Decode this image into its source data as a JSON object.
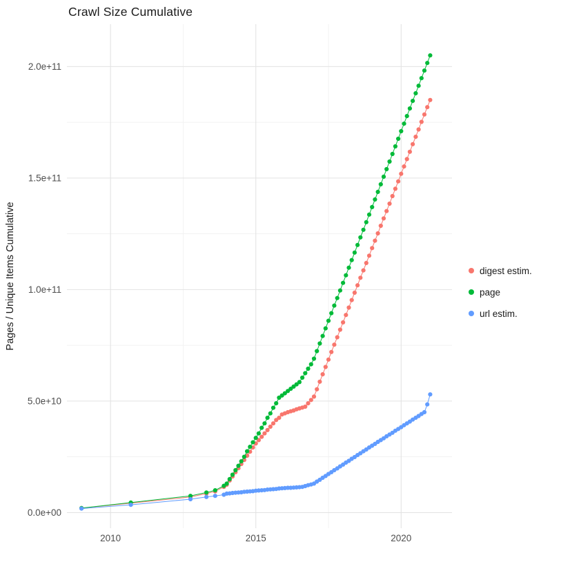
{
  "page": {
    "background": "#ffffff"
  },
  "chart_data": {
    "type": "line",
    "title": "Crawl Size Cumulative",
    "xlabel": "",
    "ylabel": "Pages / Unique Items Cumulative",
    "grid": true,
    "legend_position": "right",
    "y_unit": 1000000000,
    "xlim": [
      2008.5,
      2021.75
    ],
    "ylim_e9": [
      -7,
      219
    ],
    "x_ticks": [
      {
        "value": 2010,
        "label": "2010"
      },
      {
        "value": 2015,
        "label": "2015"
      },
      {
        "value": 2020,
        "label": "2020"
      }
    ],
    "x_minor": [
      2012.5,
      2017.5
    ],
    "y_ticks": [
      {
        "value_e9": 0,
        "label": "0.0e+00"
      },
      {
        "value_e9": 50,
        "label": "5.0e+10"
      },
      {
        "value_e9": 100,
        "label": "1.0e+11"
      },
      {
        "value_e9": 150,
        "label": "1.5e+11"
      },
      {
        "value_e9": 200,
        "label": "2.0e+11"
      }
    ],
    "y_minor_e9": [
      25,
      75,
      125,
      175
    ],
    "colors": {
      "major_grid": "#e3e3e3",
      "minor_grid": "#f1f1f1",
      "tick_text": "#4d4d4d"
    },
    "series": [
      {
        "name": "digest estim.",
        "color": "#F8766D",
        "points_e9": [
          [
            2009,
            2
          ],
          [
            2010.7,
            4.2
          ],
          [
            2012.75,
            7
          ],
          [
            2013.3,
            8.5
          ],
          [
            2013.6,
            9.5
          ],
          [
            2013.9,
            11.5
          ],
          [
            2014,
            12.5
          ],
          [
            2014.1,
            14.4
          ],
          [
            2014.2,
            16.2
          ],
          [
            2014.3,
            18.1
          ],
          [
            2014.4,
            19.9
          ],
          [
            2014.5,
            21.8
          ],
          [
            2014.6,
            23.6
          ],
          [
            2014.7,
            25.5
          ],
          [
            2014.8,
            27.3
          ],
          [
            2014.9,
            29.2
          ],
          [
            2015,
            31
          ],
          [
            2015.1,
            32.5
          ],
          [
            2015.2,
            34
          ],
          [
            2015.3,
            35.5
          ],
          [
            2015.4,
            37
          ],
          [
            2015.5,
            38.5
          ],
          [
            2015.6,
            40
          ],
          [
            2015.7,
            41.5
          ],
          [
            2015.8,
            42.5
          ],
          [
            2015.9,
            44
          ],
          [
            2016,
            44.5
          ],
          [
            2016.1,
            45
          ],
          [
            2016.2,
            45.4
          ],
          [
            2016.3,
            45.8
          ],
          [
            2016.4,
            46.3
          ],
          [
            2016.5,
            46.7
          ],
          [
            2016.6,
            47.1
          ],
          [
            2016.7,
            47.5
          ],
          [
            2016.8,
            49
          ],
          [
            2016.9,
            50.5
          ],
          [
            2017,
            52
          ],
          [
            2017.1,
            55.3
          ],
          [
            2017.2,
            58.7
          ],
          [
            2017.3,
            62
          ],
          [
            2017.4,
            65.3
          ],
          [
            2017.5,
            68.6
          ],
          [
            2017.6,
            72
          ],
          [
            2017.7,
            75.3
          ],
          [
            2017.8,
            78.6
          ],
          [
            2017.9,
            82
          ],
          [
            2018,
            85.3
          ],
          [
            2018.1,
            88.6
          ],
          [
            2018.2,
            91.9
          ],
          [
            2018.3,
            95.3
          ],
          [
            2018.4,
            98.6
          ],
          [
            2018.5,
            101.9
          ],
          [
            2018.6,
            105.3
          ],
          [
            2018.7,
            108.6
          ],
          [
            2018.8,
            111.9
          ],
          [
            2018.9,
            115.2
          ],
          [
            2019,
            118.6
          ],
          [
            2019.1,
            121.9
          ],
          [
            2019.2,
            125.2
          ],
          [
            2019.3,
            128.6
          ],
          [
            2019.4,
            131.9
          ],
          [
            2019.5,
            135.2
          ],
          [
            2019.6,
            138.5
          ],
          [
            2019.7,
            141.9
          ],
          [
            2019.8,
            145.2
          ],
          [
            2019.9,
            148.5
          ],
          [
            2020,
            151.9
          ],
          [
            2020.1,
            155.2
          ],
          [
            2020.2,
            158.5
          ],
          [
            2020.3,
            161.8
          ],
          [
            2020.4,
            165.2
          ],
          [
            2020.5,
            168.5
          ],
          [
            2020.6,
            171.8
          ],
          [
            2020.7,
            175.2
          ],
          [
            2020.8,
            178.5
          ],
          [
            2020.9,
            181.8
          ],
          [
            2021,
            185
          ]
        ]
      },
      {
        "name": "page",
        "color": "#00BA38",
        "points_e9": [
          [
            2009,
            2
          ],
          [
            2010.7,
            4.5
          ],
          [
            2012.75,
            7.5
          ],
          [
            2013.3,
            9
          ],
          [
            2013.6,
            10
          ],
          [
            2013.9,
            12
          ],
          [
            2014,
            13
          ],
          [
            2014.1,
            15
          ],
          [
            2014.2,
            17
          ],
          [
            2014.3,
            19
          ],
          [
            2014.4,
            21
          ],
          [
            2014.5,
            23
          ],
          [
            2014.6,
            25
          ],
          [
            2014.7,
            27.5
          ],
          [
            2014.8,
            29.5
          ],
          [
            2014.9,
            31.5
          ],
          [
            2015,
            33.5
          ],
          [
            2015.1,
            35.5
          ],
          [
            2015.2,
            38
          ],
          [
            2015.3,
            40
          ],
          [
            2015.4,
            42.5
          ],
          [
            2015.5,
            44.5
          ],
          [
            2015.6,
            47
          ],
          [
            2015.7,
            49
          ],
          [
            2015.8,
            51.5
          ],
          [
            2015.9,
            52.5
          ],
          [
            2016,
            53.5
          ],
          [
            2016.1,
            54.5
          ],
          [
            2016.2,
            55.5
          ],
          [
            2016.3,
            56.5
          ],
          [
            2016.4,
            57.5
          ],
          [
            2016.5,
            58.5
          ],
          [
            2016.6,
            60.5
          ],
          [
            2016.7,
            62.5
          ],
          [
            2016.8,
            64.5
          ],
          [
            2016.9,
            66.5
          ],
          [
            2017,
            69
          ],
          [
            2017.1,
            72.4
          ],
          [
            2017.2,
            75.8
          ],
          [
            2017.3,
            79.2
          ],
          [
            2017.4,
            82.6
          ],
          [
            2017.5,
            86
          ],
          [
            2017.6,
            89.4
          ],
          [
            2017.7,
            92.8
          ],
          [
            2017.8,
            96.2
          ],
          [
            2017.9,
            99.6
          ],
          [
            2018,
            103
          ],
          [
            2018.1,
            106.4
          ],
          [
            2018.2,
            109.8
          ],
          [
            2018.3,
            113.2
          ],
          [
            2018.4,
            116.6
          ],
          [
            2018.5,
            120
          ],
          [
            2018.6,
            123.4
          ],
          [
            2018.7,
            126.8
          ],
          [
            2018.8,
            130.2
          ],
          [
            2018.9,
            133.6
          ],
          [
            2019,
            137
          ],
          [
            2019.1,
            140.4
          ],
          [
            2019.2,
            143.8
          ],
          [
            2019.3,
            147.2
          ],
          [
            2019.4,
            150.6
          ],
          [
            2019.5,
            154
          ],
          [
            2019.6,
            157.4
          ],
          [
            2019.7,
            160.8
          ],
          [
            2019.8,
            164.2
          ],
          [
            2019.9,
            167.6
          ],
          [
            2020,
            171
          ],
          [
            2020.1,
            174.4
          ],
          [
            2020.2,
            177.8
          ],
          [
            2020.3,
            181.2
          ],
          [
            2020.4,
            184.6
          ],
          [
            2020.5,
            188
          ],
          [
            2020.6,
            191.4
          ],
          [
            2020.7,
            194.8
          ],
          [
            2020.8,
            198.2
          ],
          [
            2020.9,
            201.6
          ],
          [
            2021,
            205
          ]
        ]
      },
      {
        "name": "url estim.",
        "color": "#619CFF",
        "points_e9": [
          [
            2009,
            1.8
          ],
          [
            2010.7,
            3.5
          ],
          [
            2012.75,
            6
          ],
          [
            2013.3,
            7
          ],
          [
            2013.6,
            7.5
          ],
          [
            2013.9,
            8
          ],
          [
            2014,
            8.5
          ],
          [
            2014.1,
            8.6
          ],
          [
            2014.2,
            8.8
          ],
          [
            2014.3,
            8.9
          ],
          [
            2014.4,
            9
          ],
          [
            2014.5,
            9.1
          ],
          [
            2014.6,
            9.3
          ],
          [
            2014.7,
            9.4
          ],
          [
            2014.8,
            9.5
          ],
          [
            2014.9,
            9.6
          ],
          [
            2015,
            9.8
          ],
          [
            2015.1,
            9.9
          ],
          [
            2015.2,
            10
          ],
          [
            2015.3,
            10.1
          ],
          [
            2015.4,
            10.3
          ],
          [
            2015.5,
            10.4
          ],
          [
            2015.6,
            10.5
          ],
          [
            2015.7,
            10.6
          ],
          [
            2015.8,
            10.8
          ],
          [
            2015.9,
            10.9
          ],
          [
            2016,
            11
          ],
          [
            2016.1,
            11.1
          ],
          [
            2016.2,
            11.1
          ],
          [
            2016.3,
            11.2
          ],
          [
            2016.4,
            11.3
          ],
          [
            2016.5,
            11.4
          ],
          [
            2016.6,
            11.5
          ],
          [
            2016.7,
            11.9
          ],
          [
            2016.8,
            12.3
          ],
          [
            2016.9,
            12.6
          ],
          [
            2017,
            13
          ],
          [
            2017.1,
            13.9
          ],
          [
            2017.2,
            14.7
          ],
          [
            2017.3,
            15.6
          ],
          [
            2017.4,
            16.4
          ],
          [
            2017.5,
            17.3
          ],
          [
            2017.6,
            18.1
          ],
          [
            2017.7,
            19
          ],
          [
            2017.8,
            19.8
          ],
          [
            2017.9,
            20.7
          ],
          [
            2018,
            21.5
          ],
          [
            2018.1,
            22.4
          ],
          [
            2018.2,
            23.2
          ],
          [
            2018.3,
            24.1
          ],
          [
            2018.4,
            24.9
          ],
          [
            2018.5,
            25.8
          ],
          [
            2018.6,
            26.6
          ],
          [
            2018.7,
            27.5
          ],
          [
            2018.8,
            28.3
          ],
          [
            2018.9,
            29.2
          ],
          [
            2019,
            30
          ],
          [
            2019.1,
            30.8
          ],
          [
            2019.2,
            31.7
          ],
          [
            2019.3,
            32.5
          ],
          [
            2019.4,
            33.3
          ],
          [
            2019.5,
            34.2
          ],
          [
            2019.6,
            35
          ],
          [
            2019.7,
            35.8
          ],
          [
            2019.8,
            36.7
          ],
          [
            2019.9,
            37.5
          ],
          [
            2020,
            38.3
          ],
          [
            2020.1,
            39.2
          ],
          [
            2020.2,
            40
          ],
          [
            2020.3,
            40.8
          ],
          [
            2020.4,
            41.7
          ],
          [
            2020.5,
            42.5
          ],
          [
            2020.6,
            43.3
          ],
          [
            2020.7,
            44.2
          ],
          [
            2020.8,
            45
          ],
          [
            2020.9,
            48.5
          ],
          [
            2021,
            53
          ]
        ]
      }
    ]
  }
}
